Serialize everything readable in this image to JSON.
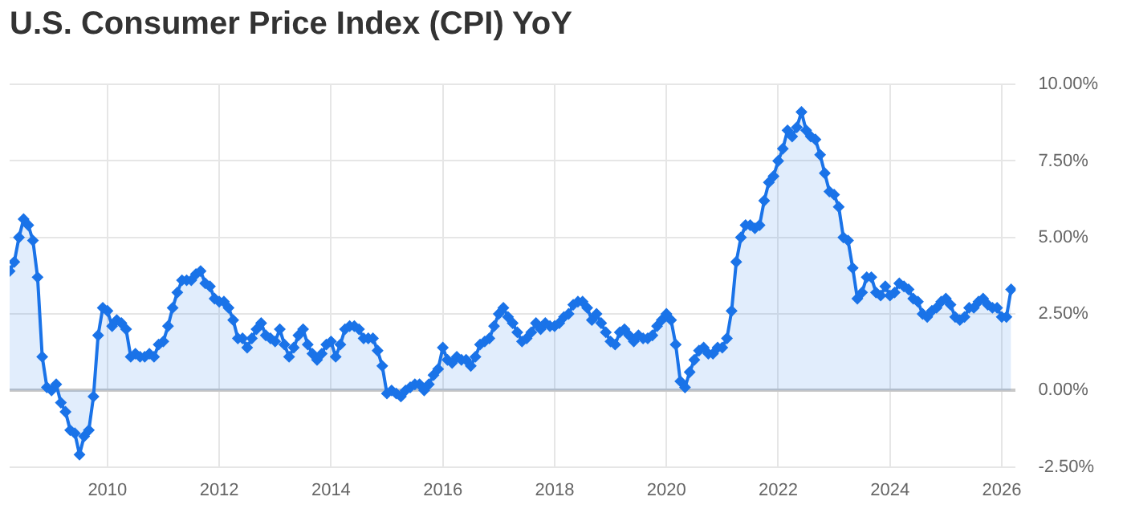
{
  "chart_data": {
    "type": "area",
    "title": "U.S. Consumer Price Index (CPI) YoY",
    "series": [
      {
        "color": "#1a73e8",
        "x": [
          "2008-04",
          "2008-05",
          "2008-06",
          "2008-07",
          "2008-08",
          "2008-09",
          "2008-10",
          "2008-11",
          "2008-12",
          "2009-01",
          "2009-02",
          "2009-03",
          "2009-04",
          "2009-05",
          "2009-06",
          "2009-07",
          "2009-08",
          "2009-09",
          "2009-10",
          "2009-11",
          "2009-12",
          "2010-01",
          "2010-02",
          "2010-03",
          "2010-04",
          "2010-05",
          "2010-06",
          "2010-07",
          "2010-08",
          "2010-09",
          "2010-10",
          "2010-11",
          "2010-12",
          "2011-01",
          "2011-02",
          "2011-03",
          "2011-04",
          "2011-05",
          "2011-06",
          "2011-07",
          "2011-08",
          "2011-09",
          "2011-10",
          "2011-11",
          "2011-12",
          "2012-01",
          "2012-02",
          "2012-03",
          "2012-04",
          "2012-05",
          "2012-06",
          "2012-07",
          "2012-08",
          "2012-09",
          "2012-10",
          "2012-11",
          "2012-12",
          "2013-01",
          "2013-02",
          "2013-03",
          "2013-04",
          "2013-05",
          "2013-06",
          "2013-07",
          "2013-08",
          "2013-09",
          "2013-10",
          "2013-11",
          "2013-12",
          "2014-01",
          "2014-02",
          "2014-03",
          "2014-04",
          "2014-05",
          "2014-06",
          "2014-07",
          "2014-08",
          "2014-09",
          "2014-10",
          "2014-11",
          "2014-12",
          "2015-01",
          "2015-02",
          "2015-03",
          "2015-04",
          "2015-05",
          "2015-06",
          "2015-07",
          "2015-08",
          "2015-09",
          "2015-10",
          "2015-11",
          "2015-12",
          "2016-01",
          "2016-02",
          "2016-03",
          "2016-04",
          "2016-05",
          "2016-06",
          "2016-07",
          "2016-08",
          "2016-09",
          "2016-10",
          "2016-11",
          "2016-12",
          "2017-01",
          "2017-02",
          "2017-03",
          "2017-04",
          "2017-05",
          "2017-06",
          "2017-07",
          "2017-08",
          "2017-09",
          "2017-10",
          "2017-11",
          "2017-12",
          "2018-01",
          "2018-02",
          "2018-03",
          "2018-04",
          "2018-05",
          "2018-06",
          "2018-07",
          "2018-08",
          "2018-09",
          "2018-10",
          "2018-11",
          "2018-12",
          "2019-01",
          "2019-02",
          "2019-03",
          "2019-04",
          "2019-05",
          "2019-06",
          "2019-07",
          "2019-08",
          "2019-09",
          "2019-10",
          "2019-11",
          "2019-12",
          "2020-01",
          "2020-02",
          "2020-03",
          "2020-04",
          "2020-05",
          "2020-06",
          "2020-07",
          "2020-08",
          "2020-09",
          "2020-10",
          "2020-11",
          "2020-12",
          "2021-01",
          "2021-02",
          "2021-03",
          "2021-04",
          "2021-05",
          "2021-06",
          "2021-07",
          "2021-08",
          "2021-09",
          "2021-10",
          "2021-11",
          "2021-12",
          "2022-01",
          "2022-02",
          "2022-03",
          "2022-04",
          "2022-05",
          "2022-06",
          "2022-07",
          "2022-08",
          "2022-09",
          "2022-10",
          "2022-11",
          "2022-12",
          "2023-01",
          "2023-02",
          "2023-03",
          "2023-04",
          "2023-05",
          "2023-06",
          "2023-07",
          "2023-08",
          "2023-09",
          "2023-10",
          "2023-11",
          "2023-12",
          "2024-01",
          "2024-02",
          "2024-03",
          "2024-04",
          "2024-05",
          "2024-06",
          "2024-07",
          "2024-08",
          "2024-09",
          "2024-10",
          "2024-11",
          "2024-12",
          "2025-01",
          "2025-02",
          "2025-03",
          "2025-04",
          "2025-05",
          "2025-06",
          "2025-07",
          "2025-08",
          "2025-09",
          "2025-10",
          "2025-11",
          "2025-12",
          "2026-01",
          "2026-02",
          "2026-03"
        ],
        "values": [
          3.9,
          4.2,
          5.0,
          5.6,
          5.4,
          4.9,
          3.7,
          1.1,
          0.1,
          0.0,
          0.2,
          -0.4,
          -0.7,
          -1.3,
          -1.4,
          -2.1,
          -1.5,
          -1.3,
          -0.2,
          1.8,
          2.7,
          2.6,
          2.1,
          2.3,
          2.2,
          2.0,
          1.1,
          1.2,
          1.1,
          1.1,
          1.2,
          1.1,
          1.5,
          1.6,
          2.1,
          2.7,
          3.2,
          3.6,
          3.6,
          3.6,
          3.8,
          3.9,
          3.5,
          3.4,
          3.0,
          2.9,
          2.9,
          2.7,
          2.3,
          1.7,
          1.7,
          1.4,
          1.7,
          2.0,
          2.2,
          1.8,
          1.7,
          1.6,
          2.0,
          1.5,
          1.1,
          1.4,
          1.8,
          2.0,
          1.5,
          1.2,
          1.0,
          1.2,
          1.5,
          1.6,
          1.1,
          1.5,
          2.0,
          2.1,
          2.1,
          2.0,
          1.7,
          1.7,
          1.7,
          1.3,
          0.8,
          -0.1,
          0.0,
          -0.1,
          -0.2,
          0.0,
          0.1,
          0.2,
          0.2,
          0.0,
          0.2,
          0.5,
          0.7,
          1.4,
          1.0,
          0.9,
          1.1,
          1.0,
          1.0,
          0.8,
          1.1,
          1.5,
          1.6,
          1.7,
          2.1,
          2.5,
          2.7,
          2.4,
          2.2,
          1.9,
          1.6,
          1.7,
          1.9,
          2.2,
          2.0,
          2.2,
          2.1,
          2.1,
          2.2,
          2.4,
          2.5,
          2.8,
          2.9,
          2.9,
          2.7,
          2.3,
          2.5,
          2.2,
          1.9,
          1.6,
          1.5,
          1.9,
          2.0,
          1.8,
          1.6,
          1.8,
          1.7,
          1.7,
          1.8,
          2.1,
          2.3,
          2.5,
          2.3,
          1.5,
          0.3,
          0.1,
          0.6,
          1.0,
          1.3,
          1.4,
          1.2,
          1.2,
          1.4,
          1.4,
          1.7,
          2.6,
          4.2,
          5.0,
          5.4,
          5.4,
          5.3,
          5.4,
          6.2,
          6.8,
          7.0,
          7.5,
          7.9,
          8.5,
          8.3,
          8.6,
          9.1,
          8.5,
          8.3,
          8.2,
          7.7,
          7.1,
          6.5,
          6.4,
          6.0,
          5.0,
          4.9,
          4.0,
          3.0,
          3.2,
          3.7,
          3.7,
          3.2,
          3.1,
          3.4,
          3.1,
          3.2,
          3.5,
          3.4,
          3.3,
          3.0,
          2.9,
          2.5,
          2.4,
          2.6,
          2.7,
          2.9,
          3.0,
          2.8,
          2.4,
          2.3,
          2.4,
          2.7,
          2.7,
          2.9,
          3.0,
          2.8,
          2.7,
          2.7,
          2.4,
          2.4,
          3.3
        ]
      }
    ],
    "xlim": [
      "2008-04",
      "2026-04"
    ],
    "xticks": [
      {
        "value": "2010",
        "label": "2010"
      },
      {
        "value": "2012",
        "label": "2012"
      },
      {
        "value": "2014",
        "label": "2014"
      },
      {
        "value": "2016",
        "label": "2016"
      },
      {
        "value": "2018",
        "label": "2018"
      },
      {
        "value": "2020",
        "label": "2020"
      },
      {
        "value": "2022",
        "label": "2022"
      },
      {
        "value": "2024",
        "label": "2024"
      },
      {
        "value": "2026",
        "label": "2026"
      }
    ],
    "ylim": [
      -2.5,
      10
    ],
    "yticks": [
      {
        "value": -2.5,
        "label": "-2.50%"
      },
      {
        "value": 0,
        "label": "0.00%"
      },
      {
        "value": 2.5,
        "label": "2.50%"
      },
      {
        "value": 5,
        "label": "5.00%"
      },
      {
        "value": 7.5,
        "label": "7.50%"
      },
      {
        "value": 10,
        "label": "10.00%"
      }
    ],
    "grid": true,
    "marker": "diamond",
    "line_style": "solid"
  }
}
